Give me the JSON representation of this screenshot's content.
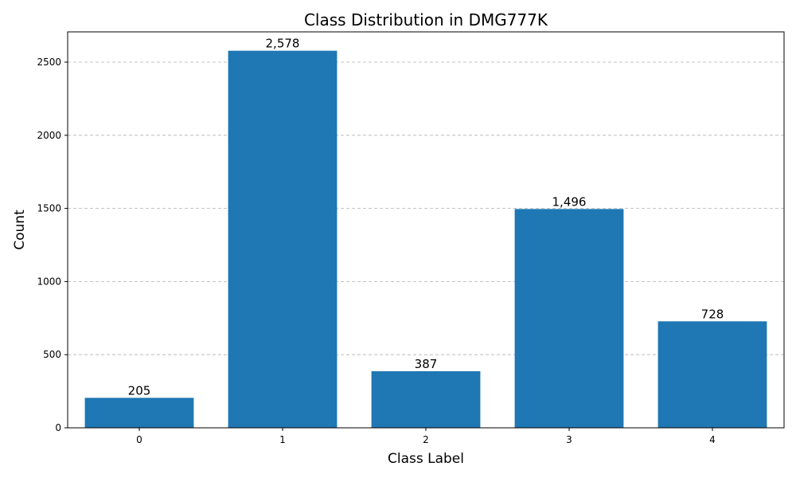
{
  "chart_data": {
    "type": "bar",
    "title": "Class Distribution in DMG777K",
    "xlabel": "Class Label",
    "ylabel": "Count",
    "categories": [
      "0",
      "1",
      "2",
      "3",
      "4"
    ],
    "values": [
      205,
      2578,
      387,
      1496,
      728
    ],
    "data_labels": [
      "205",
      "2,578",
      "387",
      "1,496",
      "728"
    ],
    "y_ticks": [
      0,
      500,
      1000,
      1500,
      2000,
      2500
    ],
    "y_tick_labels": [
      "0",
      "500",
      "1000",
      "1500",
      "2000",
      "2500"
    ],
    "ylim": [
      0,
      2707
    ],
    "grid": "y-dashed",
    "bar_color": "#1f77b4",
    "grid_color": "#b0b0b0"
  }
}
